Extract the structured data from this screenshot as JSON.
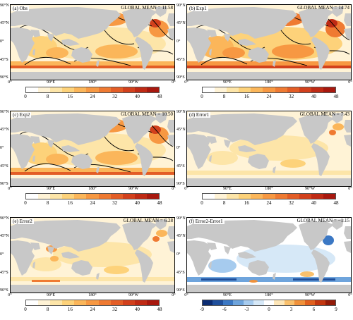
{
  "colors": {
    "land": "#c8c8c8",
    "ocean_positive_ramp": [
      "#ffffff",
      "#fff3d6",
      "#fde5a8",
      "#fdd27a",
      "#fbb65a",
      "#f79842",
      "#ef7a32",
      "#e35d26",
      "#d2401c",
      "#bf2a14",
      "#a8180e"
    ],
    "ocean_diverging_ramp": [
      "#0b2c72",
      "#1f4f9c",
      "#3b78c4",
      "#6ea4dc",
      "#a6cbee",
      "#d6e8f7",
      "#ffffff",
      "#fde6b8",
      "#f9c06c",
      "#f0913a",
      "#e0601e",
      "#c2360f",
      "#921a08"
    ]
  },
  "y_axis_ticks": [
    "90°N",
    "45°N",
    "0°",
    "45°S",
    "90°S"
  ],
  "x_axis_ticks": [
    "0°",
    "90°E",
    "180°",
    "90°W",
    "0°"
  ],
  "panels": [
    {
      "label": "(a) Obs",
      "gmean_label": "GLOBAL MEAN =",
      "gmean_value": "11.58",
      "colorbar": "positive",
      "colorbar_ticks": [
        "0",
        "8",
        "16",
        "24",
        "32",
        "40",
        "48"
      ]
    },
    {
      "label": "(b) Exp1",
      "gmean_label": "GLOBAL MEAN =",
      "gmean_value": "14.74",
      "colorbar": "positive",
      "colorbar_ticks": [
        "0",
        "8",
        "16",
        "24",
        "32",
        "40",
        "48"
      ]
    },
    {
      "label": "(c) Exp2",
      "gmean_label": "GLOBAL MEAN =",
      "gmean_value": "10.50",
      "colorbar": "positive",
      "colorbar_ticks": [
        "0",
        "8",
        "16",
        "24",
        "32",
        "40",
        "48"
      ]
    },
    {
      "label": "(d) Error1",
      "gmean_label": "GLOBAL MEAN =",
      "gmean_value": "7.43",
      "colorbar": "positive",
      "colorbar_ticks": [
        "0",
        "8",
        "16",
        "24",
        "32",
        "40",
        "48"
      ]
    },
    {
      "label": "(e) Error2",
      "gmean_label": "GLOBAL MEAN =",
      "gmean_value": "6.28",
      "colorbar": "positive",
      "colorbar_ticks": [
        "0",
        "8",
        "16",
        "24",
        "32",
        "40",
        "48"
      ]
    },
    {
      "label": "(f) Error2-Error1",
      "gmean_label": "GLOBAL MEAN =",
      "gmean_value": "−1.15",
      "colorbar": "diverging",
      "colorbar_ticks": [
        "-9",
        "-6",
        "-3",
        "0",
        "3",
        "6",
        "9"
      ]
    }
  ]
}
